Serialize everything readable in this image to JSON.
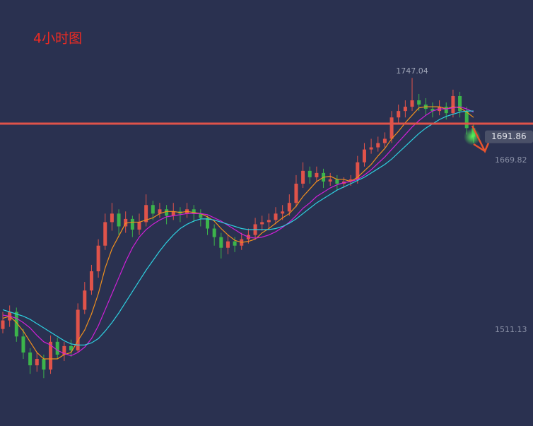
{
  "chart_data": {
    "type": "candlestick",
    "title": "4小时图",
    "up_color": "#e0534a",
    "down_color": "#3cb44b",
    "ylim": [
      1421.2,
      1819.9
    ],
    "yticks": [
      1511.13,
      1669.82
    ],
    "grid": false,
    "hline": 1704.2,
    "hline_color": "#e0534a",
    "high_label": 1747.04,
    "last_price": 1691.86,
    "ohlc": [
      [
        1512,
        1528,
        1508,
        1520
      ],
      [
        1520,
        1534,
        1514,
        1528
      ],
      [
        1528,
        1532,
        1500,
        1505
      ],
      [
        1505,
        1512,
        1484,
        1490
      ],
      [
        1490,
        1494,
        1470,
        1478
      ],
      [
        1478,
        1490,
        1472,
        1484
      ],
      [
        1484,
        1488,
        1466,
        1474
      ],
      [
        1474,
        1506,
        1470,
        1500
      ],
      [
        1500,
        1504,
        1484,
        1488
      ],
      [
        1488,
        1500,
        1482,
        1496
      ],
      [
        1496,
        1502,
        1486,
        1492
      ],
      [
        1492,
        1536,
        1490,
        1530
      ],
      [
        1530,
        1556,
        1526,
        1548
      ],
      [
        1548,
        1572,
        1544,
        1566
      ],
      [
        1566,
        1596,
        1560,
        1590
      ],
      [
        1590,
        1620,
        1586,
        1612
      ],
      [
        1612,
        1630,
        1604,
        1620
      ],
      [
        1620,
        1624,
        1600,
        1608
      ],
      [
        1608,
        1622,
        1602,
        1615
      ],
      [
        1615,
        1618,
        1598,
        1605
      ],
      [
        1605,
        1620,
        1600,
        1612
      ],
      [
        1612,
        1638,
        1608,
        1628
      ],
      [
        1628,
        1632,
        1614,
        1620
      ],
      [
        1620,
        1630,
        1616,
        1624
      ],
      [
        1624,
        1628,
        1610,
        1618
      ],
      [
        1618,
        1630,
        1614,
        1622
      ],
      [
        1622,
        1626,
        1612,
        1620
      ],
      [
        1620,
        1630,
        1616,
        1624
      ],
      [
        1624,
        1628,
        1612,
        1620
      ],
      [
        1620,
        1624,
        1608,
        1616
      ],
      [
        1616,
        1618,
        1600,
        1606
      ],
      [
        1606,
        1610,
        1590,
        1598
      ],
      [
        1598,
        1602,
        1578,
        1588
      ],
      [
        1588,
        1600,
        1582,
        1594
      ],
      [
        1594,
        1598,
        1584,
        1590
      ],
      [
        1590,
        1602,
        1586,
        1596
      ],
      [
        1596,
        1606,
        1592,
        1600
      ],
      [
        1600,
        1616,
        1596,
        1610
      ],
      [
        1610,
        1618,
        1604,
        1612
      ],
      [
        1612,
        1620,
        1606,
        1614
      ],
      [
        1614,
        1626,
        1610,
        1620
      ],
      [
        1620,
        1628,
        1614,
        1622
      ],
      [
        1622,
        1638,
        1618,
        1630
      ],
      [
        1630,
        1656,
        1626,
        1648
      ],
      [
        1648,
        1668,
        1644,
        1660
      ],
      [
        1660,
        1664,
        1648,
        1654
      ],
      [
        1654,
        1664,
        1650,
        1658
      ],
      [
        1658,
        1662,
        1644,
        1650
      ],
      [
        1650,
        1658,
        1646,
        1652
      ],
      [
        1652,
        1656,
        1642,
        1648
      ],
      [
        1648,
        1654,
        1644,
        1650
      ],
      [
        1650,
        1656,
        1646,
        1652
      ],
      [
        1652,
        1674,
        1648,
        1668
      ],
      [
        1668,
        1686,
        1664,
        1680
      ],
      [
        1680,
        1690,
        1676,
        1682
      ],
      [
        1682,
        1692,
        1678,
        1686
      ],
      [
        1686,
        1696,
        1682,
        1690
      ],
      [
        1690,
        1716,
        1686,
        1710
      ],
      [
        1710,
        1722,
        1704,
        1716
      ],
      [
        1716,
        1726,
        1710,
        1720
      ],
      [
        1720,
        1747.04,
        1716,
        1726
      ],
      [
        1726,
        1732,
        1716,
        1722
      ],
      [
        1722,
        1728,
        1712,
        1718
      ],
      [
        1718,
        1724,
        1710,
        1716
      ],
      [
        1716,
        1726,
        1712,
        1720
      ],
      [
        1720,
        1724,
        1708,
        1714
      ],
      [
        1714,
        1736,
        1710,
        1730
      ],
      [
        1730,
        1734,
        1710,
        1716
      ],
      [
        1716,
        1720,
        1694,
        1700
      ],
      [
        1700,
        1704,
        1686,
        1692
      ]
    ],
    "series": [
      {
        "color": "#f0901e",
        "values": [
          1522,
          1524,
          1518,
          1510,
          1500,
          1490,
          1484,
          1484,
          1484,
          1488,
          1490,
          1501,
          1511,
          1526,
          1545,
          1569,
          1587,
          1599,
          1611,
          1612,
          1612,
          1614,
          1616,
          1620,
          1622,
          1622,
          1621,
          1622,
          1621,
          1620,
          1617,
          1613,
          1606,
          1600,
          1595,
          1593,
          1594,
          1596,
          1602,
          1606,
          1611,
          1616,
          1620,
          1627,
          1636,
          1643,
          1650,
          1654,
          1655,
          1652,
          1652,
          1650,
          1654,
          1660,
          1666,
          1674,
          1681,
          1690,
          1697,
          1705,
          1712,
          1719,
          1720,
          1720,
          1720,
          1718,
          1720,
          1719,
          1715,
          1710
        ]
      },
      {
        "color": "#d020d8",
        "values": [
          1525,
          1524,
          1522,
          1518,
          1513,
          1506,
          1500,
          1497,
          1492,
          1489,
          1487,
          1490,
          1495,
          1503,
          1515,
          1530,
          1545,
          1560,
          1575,
          1588,
          1598,
          1605,
          1610,
          1614,
          1617,
          1618,
          1619,
          1620,
          1620,
          1620,
          1619,
          1616,
          1613,
          1609,
          1605,
          1601,
          1598,
          1597,
          1598,
          1600,
          1603,
          1607,
          1612,
          1618,
          1625,
          1630,
          1636,
          1640,
          1644,
          1647,
          1649,
          1650,
          1652,
          1656,
          1661,
          1667,
          1673,
          1680,
          1687,
          1694,
          1701,
          1707,
          1712,
          1716,
          1718,
          1718,
          1719,
          1720,
          1718,
          1715
        ]
      },
      {
        "color": "#2ed0e0",
        "values": [
          1530,
          1528,
          1526,
          1524,
          1521,
          1517,
          1513,
          1509,
          1505,
          1501,
          1498,
          1497,
          1497,
          1499,
          1503,
          1510,
          1518,
          1527,
          1537,
          1547,
          1557,
          1567,
          1576,
          1585,
          1593,
          1600,
          1606,
          1610,
          1613,
          1615,
          1615,
          1614,
          1612,
          1610,
          1608,
          1606,
          1605,
          1605,
          1605,
          1605,
          1606,
          1608,
          1611,
          1615,
          1620,
          1625,
          1630,
          1634,
          1638,
          1642,
          1645,
          1648,
          1651,
          1654,
          1658,
          1662,
          1666,
          1671,
          1677,
          1683,
          1689,
          1695,
          1700,
          1704,
          1708,
          1711,
          1713,
          1715,
          1716,
          1716
        ]
      }
    ]
  }
}
